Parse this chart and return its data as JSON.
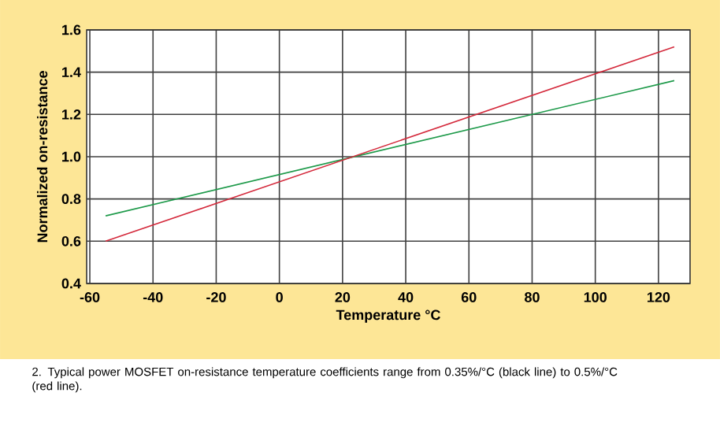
{
  "chart_data": {
    "type": "line",
    "xlabel": "Temperature °C",
    "ylabel": "Normalized on-resistance",
    "x": [
      -55,
      125
    ],
    "series": [
      {
        "color": "#1e9a4a",
        "values": [
          0.72,
          1.36
        ]
      },
      {
        "color": "#d42a3c",
        "values": [
          0.6,
          1.52
        ]
      }
    ],
    "xlim": [
      -61,
      130
    ],
    "ylim": [
      0.4,
      1.6
    ],
    "xticks": [
      -60,
      -40,
      -20,
      0,
      20,
      40,
      60,
      80,
      100,
      120
    ],
    "yticks": [
      {
        "value": 0.4,
        "label": "0.4"
      },
      {
        "value": 0.6,
        "label": "0.6"
      },
      {
        "value": 0.8,
        "label": "0.8"
      },
      {
        "value": 1.0,
        "label": "1.0"
      },
      {
        "value": 1.2,
        "label": "1.2"
      },
      {
        "value": 1.4,
        "label": "1.4"
      },
      {
        "value": 1.6,
        "label": "1.6"
      }
    ],
    "grid": true,
    "marker": "none",
    "line_style": "solid",
    "annotations": [
      "2. Typical power MOSFET on-resistance temperature coefficients range from 0.35%/°C (black line) to 0.5%/°C (red line)."
    ]
  }
}
